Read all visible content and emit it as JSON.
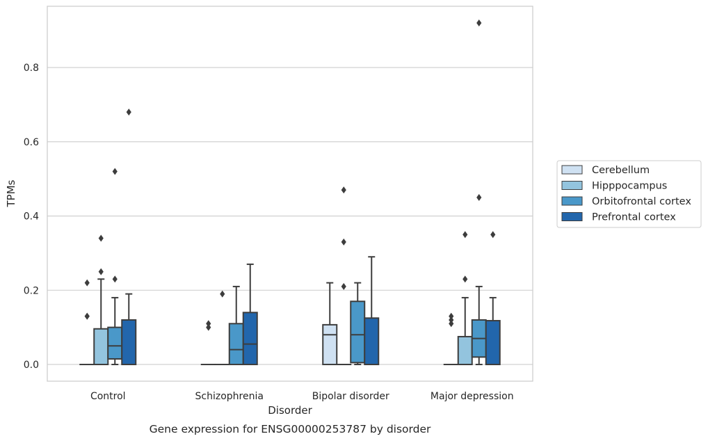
{
  "chart_data": {
    "type": "box",
    "caption": "Gene expression for ENSG00000253787 by disorder",
    "xlabel": "Disorder",
    "ylabel": "TPMs",
    "ylim": [
      -0.045,
      0.965
    ],
    "yticks": [
      "0.0",
      "0.2",
      "0.4",
      "0.6",
      "0.8"
    ],
    "grid": true,
    "legend_position": "right",
    "categories": [
      "Control",
      "Schizophrenia",
      "Bipolar disorder",
      "Major depression"
    ],
    "series": [
      {
        "name": "Cerebellum",
        "color": "#cfe1f2",
        "boxes": [
          {
            "q1": 0,
            "median": 0,
            "q3": 0,
            "whisker_low": 0,
            "whisker_high": 0,
            "outliers": [
              0.13,
              0.13,
              0.22
            ]
          },
          {
            "q1": 0,
            "median": 0,
            "q3": 0,
            "whisker_low": 0,
            "whisker_high": 0,
            "outliers": [
              0.1,
              0.11
            ]
          },
          {
            "q1": 0,
            "median": 0.08,
            "q3": 0.107,
            "whisker_low": 0,
            "whisker_high": 0.22,
            "outliers": []
          },
          {
            "q1": 0,
            "median": 0,
            "q3": 0,
            "whisker_low": 0,
            "whisker_high": 0,
            "outliers": [
              0.11,
              0.12,
              0.13
            ]
          }
        ]
      },
      {
        "name": "Hipppocampus",
        "color": "#93c4de",
        "boxes": [
          {
            "q1": 0,
            "median": 0,
            "q3": 0.096,
            "whisker_low": 0,
            "whisker_high": 0.23,
            "outliers": [
              0.25,
              0.34
            ]
          },
          {
            "q1": 0,
            "median": 0,
            "q3": 0,
            "whisker_low": 0,
            "whisker_high": 0,
            "outliers": [
              0.19
            ]
          },
          {
            "q1": 0,
            "median": 0,
            "q3": 0,
            "whisker_low": 0,
            "whisker_high": 0,
            "outliers": [
              0.21,
              0.33,
              0.47
            ]
          },
          {
            "q1": 0,
            "median": 0,
            "q3": 0.075,
            "whisker_low": 0,
            "whisker_high": 0.18,
            "outliers": [
              0.23,
              0.35
            ]
          }
        ]
      },
      {
        "name": "Orbitofrontal cortex",
        "color": "#4a98c9",
        "boxes": [
          {
            "q1": 0.015,
            "median": 0.05,
            "q3": 0.1,
            "whisker_low": 0,
            "whisker_high": 0.18,
            "outliers": [
              0.23,
              0.52
            ]
          },
          {
            "q1": 0,
            "median": 0.04,
            "q3": 0.11,
            "whisker_low": 0,
            "whisker_high": 0.21,
            "outliers": []
          },
          {
            "q1": 0.005,
            "median": 0.08,
            "q3": 0.17,
            "whisker_low": 0,
            "whisker_high": 0.22,
            "outliers": []
          },
          {
            "q1": 0.02,
            "median": 0.07,
            "q3": 0.12,
            "whisker_low": 0,
            "whisker_high": 0.21,
            "outliers": [
              0.45,
              0.92
            ]
          }
        ]
      },
      {
        "name": "Prefrontal cortex",
        "color": "#2266ac",
        "boxes": [
          {
            "q1": 0,
            "median": 0,
            "q3": 0.12,
            "whisker_low": 0,
            "whisker_high": 0.19,
            "outliers": [
              0.68
            ]
          },
          {
            "q1": 0,
            "median": 0.055,
            "q3": 0.14,
            "whisker_low": 0,
            "whisker_high": 0.27,
            "outliers": []
          },
          {
            "q1": 0,
            "median": 0,
            "q3": 0.125,
            "whisker_low": 0,
            "whisker_high": 0.29,
            "outliers": []
          },
          {
            "q1": 0,
            "median": 0,
            "q3": 0.118,
            "whisker_low": 0,
            "whisker_high": 0.18,
            "outliers": [
              0.35
            ]
          }
        ]
      }
    ]
  }
}
